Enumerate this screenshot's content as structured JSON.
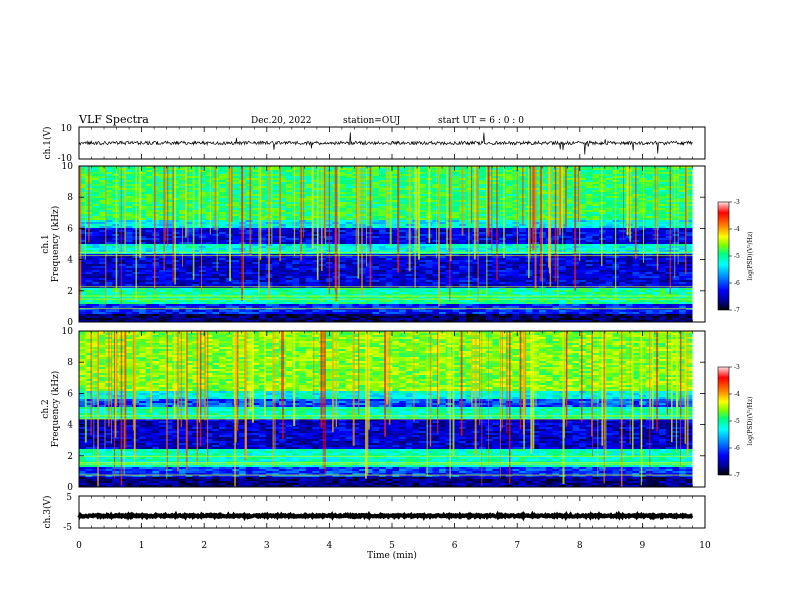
{
  "header": {
    "title": "VLF Spectra",
    "date": "Dec.20, 2022",
    "station": "station=OUJ",
    "start_ut": "start UT =  6 : 0 : 0"
  },
  "chart_data": {
    "type": "heatmap",
    "x_axis": {
      "label": "Time (min)",
      "range": [
        0,
        10
      ],
      "ticks": [
        "0",
        "1",
        "2",
        "3",
        "4",
        "5",
        "6",
        "7",
        "8",
        "9",
        "10"
      ],
      "data_end": 9.8
    },
    "panels": [
      {
        "id": "ch1-waveform",
        "type": "line",
        "ylabel": "ch.1(V)",
        "ylim": [
          -10,
          10
        ],
        "yticks": [
          "10",
          "-10"
        ],
        "baseline": 0,
        "color": "#000000"
      },
      {
        "id": "ch1-spectrogram",
        "type": "heatmap",
        "ylabel_lines": [
          "ch.1",
          "Frequency (kHz)"
        ],
        "ylim": [
          0,
          10
        ],
        "yticks": [
          "0",
          "2",
          "4",
          "6",
          "8",
          "10"
        ],
        "colorbar": {
          "title": "log(PSD)(V²/Hz)",
          "range": [
            -7,
            -3
          ],
          "ticks": [
            "-3",
            "-4",
            "-5",
            "-6",
            "-7"
          ]
        }
      },
      {
        "id": "ch2-spectrogram",
        "type": "heatmap",
        "ylabel_lines": [
          "ch.2",
          "Frequency (kHz)"
        ],
        "ylim": [
          0,
          10
        ],
        "yticks": [
          "0",
          "2",
          "4",
          "6",
          "8",
          "10"
        ],
        "colorbar": {
          "title": "log(PSD)(V²/Hz)",
          "range": [
            -7,
            -3
          ],
          "ticks": [
            "-3",
            "-4",
            "-5",
            "-6",
            "-7"
          ]
        }
      },
      {
        "id": "ch3-waveform",
        "type": "line",
        "ylabel": "ch.3(V)",
        "ylim": [
          -5,
          5
        ],
        "yticks": [
          "5",
          "-5"
        ],
        "baseline": -1.2,
        "color": "#000000"
      }
    ],
    "colormap": [
      "#000000",
      "#00008b",
      "#0000ff",
      "#0080ff",
      "#00ffff",
      "#00ff80",
      "#80ff00",
      "#ffff00",
      "#ff8000",
      "#ff0000",
      "#ffe0e0"
    ]
  }
}
